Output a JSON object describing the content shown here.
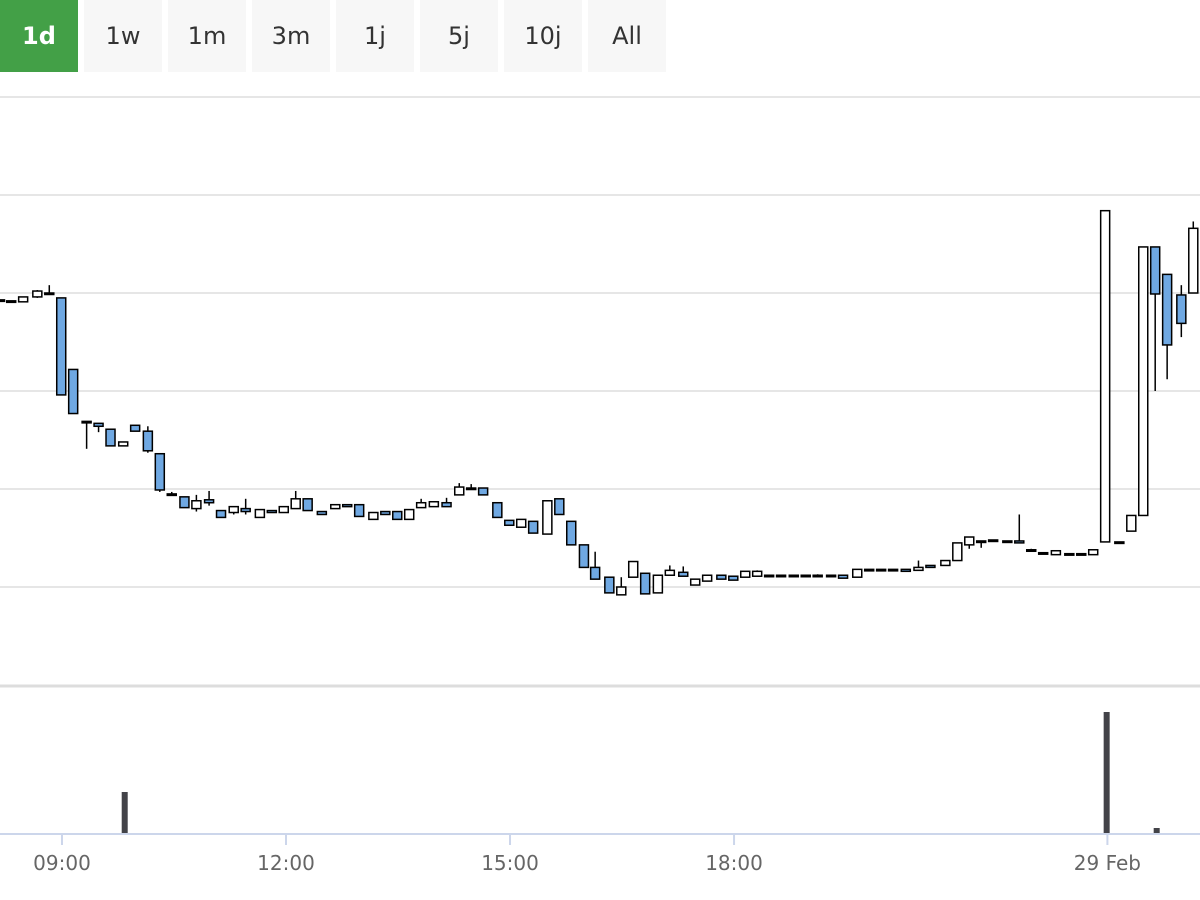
{
  "range_buttons": [
    "1d",
    "1w",
    "1m",
    "3m",
    "1j",
    "5j",
    "10j",
    "All"
  ],
  "active_button": 0,
  "chart_data": {
    "type": "candlestick",
    "x": [
      8.17,
      8.32,
      8.48,
      8.67,
      8.83,
      8.99,
      9.15,
      9.33,
      9.49,
      9.65,
      9.82,
      9.98,
      10.15,
      10.31,
      10.47,
      10.64,
      10.8,
      10.97,
      11.13,
      11.3,
      11.46,
      11.65,
      11.81,
      11.97,
      12.13,
      12.29,
      12.48,
      12.66,
      12.82,
      12.98,
      13.17,
      13.33,
      13.49,
      13.65,
      13.81,
      13.98,
      14.15,
      14.32,
      14.48,
      14.64,
      14.83,
      14.99,
      15.15,
      15.31,
      15.5,
      15.66,
      15.82,
      15.99,
      16.14,
      16.33,
      16.49,
      16.65,
      16.81,
      16.98,
      17.14,
      17.32,
      17.48,
      17.64,
      17.83,
      17.99,
      18.15,
      18.31,
      18.47,
      18.63,
      18.8,
      18.96,
      19.12,
      19.3,
      19.46,
      19.65,
      19.81,
      19.97,
      20.13,
      20.3,
      20.47,
      20.63,
      20.83,
      20.99,
      21.15,
      21.31,
      21.47,
      21.66,
      21.82,
      21.98,
      22.14,
      22.31,
      22.49,
      22.65,
      22.81,
      22.97,
      23.16,
      23.32,
      23.48,
      23.64,
      23.8,
      23.99,
      24.15
    ],
    "open": [
      3.93,
      3.92,
      3.91,
      3.96,
      4.0,
      3.95,
      3.22,
      2.69,
      2.67,
      2.61,
      2.44,
      2.65,
      2.59,
      2.36,
      1.95,
      1.92,
      1.8,
      1.89,
      1.78,
      1.76,
      1.8,
      1.71,
      1.78,
      1.76,
      1.8,
      1.9,
      1.77,
      1.8,
      1.84,
      1.84,
      1.69,
      1.77,
      1.77,
      1.69,
      1.81,
      1.82,
      1.86,
      1.94,
      2.01,
      2.01,
      1.86,
      1.68,
      1.61,
      1.67,
      1.54,
      1.9,
      1.67,
      1.43,
      1.2,
      1.1,
      0.92,
      1.1,
      1.14,
      0.94,
      1.12,
      1.15,
      1.02,
      1.06,
      1.12,
      1.11,
      1.1,
      1.11,
      1.12,
      1.12,
      1.12,
      1.12,
      1.12,
      1.12,
      1.12,
      1.1,
      1.18,
      1.18,
      1.18,
      1.18,
      1.17,
      1.22,
      1.22,
      1.27,
      1.43,
      1.47,
      1.48,
      1.47,
      1.47,
      1.38,
      1.35,
      1.33,
      1.34,
      1.34,
      1.33,
      1.46,
      1.46,
      1.57,
      1.73,
      4.47,
      4.19,
      3.98,
      4.0
    ],
    "high": [
      3.93,
      3.92,
      3.96,
      4.03,
      4.08,
      3.95,
      3.22,
      2.69,
      2.67,
      2.61,
      2.48,
      2.65,
      2.64,
      2.36,
      1.97,
      1.92,
      1.94,
      1.98,
      1.78,
      1.82,
      1.9,
      1.79,
      1.78,
      1.82,
      1.98,
      1.9,
      1.77,
      1.84,
      1.84,
      1.84,
      1.76,
      1.77,
      1.77,
      1.79,
      1.9,
      1.87,
      1.91,
      2.06,
      2.05,
      2.01,
      1.86,
      1.68,
      1.69,
      1.67,
      1.88,
      1.9,
      1.67,
      1.43,
      1.36,
      1.1,
      1.1,
      1.26,
      1.14,
      1.12,
      1.22,
      1.21,
      1.08,
      1.12,
      1.12,
      1.11,
      1.16,
      1.17,
      1.12,
      1.12,
      1.12,
      1.12,
      1.13,
      1.12,
      1.12,
      1.18,
      1.18,
      1.18,
      1.18,
      1.18,
      1.27,
      1.22,
      1.27,
      1.45,
      1.51,
      1.47,
      1.48,
      1.47,
      1.74,
      1.39,
      1.35,
      1.37,
      1.34,
      1.34,
      1.38,
      4.84,
      1.46,
      1.73,
      4.47,
      4.47,
      4.19,
      4.08,
      4.73
    ],
    "low": [
      3.93,
      3.92,
      3.91,
      3.95,
      4.0,
      2.96,
      2.77,
      2.41,
      2.58,
      2.44,
      2.44,
      2.59,
      2.37,
      1.97,
      1.93,
      1.81,
      1.77,
      1.83,
      1.71,
      1.74,
      1.74,
      1.71,
      1.76,
      1.76,
      1.8,
      1.78,
      1.74,
      1.8,
      1.82,
      1.72,
      1.69,
      1.74,
      1.69,
      1.69,
      1.81,
      1.82,
      1.82,
      1.94,
      2.01,
      1.94,
      1.71,
      1.63,
      1.61,
      1.55,
      1.54,
      1.74,
      1.43,
      1.2,
      1.08,
      0.94,
      0.92,
      1.1,
      0.93,
      0.94,
      1.12,
      1.11,
      1.02,
      1.06,
      1.08,
      1.07,
      1.1,
      1.11,
      1.12,
      1.12,
      1.12,
      1.12,
      1.12,
      1.12,
      1.09,
      1.1,
      1.18,
      1.18,
      1.18,
      1.16,
      1.17,
      1.2,
      1.22,
      1.27,
      1.39,
      1.4,
      1.48,
      1.47,
      1.45,
      1.37,
      1.35,
      1.33,
      1.34,
      1.34,
      1.33,
      1.46,
      1.46,
      1.57,
      1.73,
      3.0,
      3.12,
      3.55,
      4.0
    ],
    "close": [
      3.93,
      3.92,
      3.96,
      4.02,
      4.0,
      2.96,
      2.77,
      2.68,
      2.64,
      2.44,
      2.48,
      2.59,
      2.39,
      1.99,
      1.95,
      1.81,
      1.88,
      1.86,
      1.71,
      1.82,
      1.77,
      1.79,
      1.76,
      1.82,
      1.9,
      1.78,
      1.74,
      1.84,
      1.82,
      1.72,
      1.76,
      1.74,
      1.69,
      1.79,
      1.86,
      1.87,
      1.82,
      2.02,
      2.01,
      1.94,
      1.71,
      1.63,
      1.69,
      1.55,
      1.88,
      1.74,
      1.43,
      1.2,
      1.08,
      0.94,
      1.0,
      1.26,
      0.93,
      1.12,
      1.17,
      1.11,
      1.08,
      1.12,
      1.08,
      1.07,
      1.16,
      1.16,
      1.12,
      1.12,
      1.12,
      1.12,
      1.12,
      1.12,
      1.09,
      1.18,
      1.18,
      1.18,
      1.18,
      1.16,
      1.2,
      1.2,
      1.27,
      1.45,
      1.51,
      1.47,
      1.48,
      1.47,
      1.45,
      1.38,
      1.35,
      1.37,
      1.34,
      1.34,
      1.38,
      4.84,
      1.46,
      1.73,
      4.47,
      3.99,
      3.47,
      3.69,
      4.66
    ],
    "up_color": "#ffffff",
    "down_color": "#6fa8e2",
    "xlim": [
      8.17,
      24.24
    ],
    "xticks": [
      {
        "value": 9,
        "label": "09:00"
      },
      {
        "value": 12,
        "label": "12:00"
      },
      {
        "value": 15,
        "label": "15:00"
      },
      {
        "value": 18,
        "label": "18:00"
      },
      {
        "value": 23,
        "label": "29 Feb"
      }
    ],
    "ylim": [
      0,
      6
    ],
    "yticks": [
      1,
      2,
      3,
      4,
      5
    ],
    "grid": true,
    "volume": {
      "x": [
        9.84,
        22.99,
        23.66
      ],
      "values": [
        41,
        121,
        5
      ],
      "color": "#434348",
      "ylim": [
        0,
        145
      ]
    }
  }
}
